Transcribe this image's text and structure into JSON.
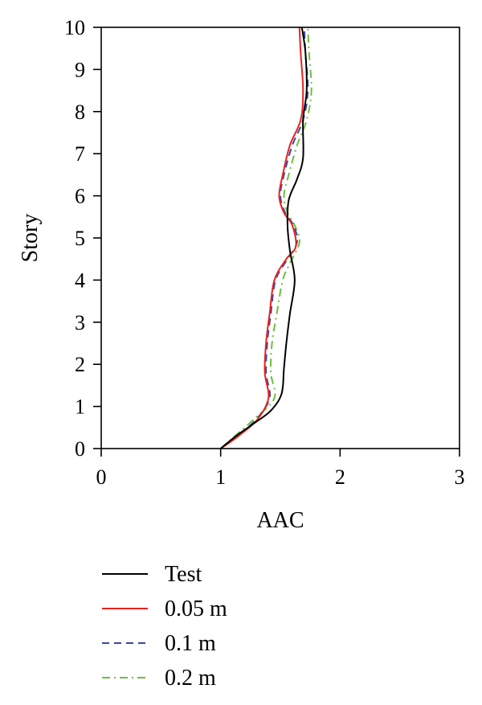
{
  "chart_data": {
    "type": "line",
    "title": "",
    "xlabel": "AAC",
    "ylabel": "Story",
    "xlim": [
      0,
      3
    ],
    "ylim": [
      0,
      10
    ],
    "x_ticks": [
      "0",
      "1",
      "2",
      "3"
    ],
    "y_ticks": [
      "0",
      "1",
      "2",
      "3",
      "4",
      "5",
      "6",
      "7",
      "8",
      "9",
      "10"
    ],
    "grid": false,
    "legend_position": "bottom",
    "series": [
      {
        "name": "Test",
        "color": "#000000",
        "dash": "solid",
        "points": [
          [
            1.0,
            0
          ],
          [
            1.13,
            0.3
          ],
          [
            1.28,
            0.6
          ],
          [
            1.42,
            0.9
          ],
          [
            1.51,
            1.3
          ],
          [
            1.53,
            1.9
          ],
          [
            1.55,
            2.5
          ],
          [
            1.58,
            3.2
          ],
          [
            1.62,
            4.0
          ],
          [
            1.58,
            4.7
          ],
          [
            1.56,
            5.3
          ],
          [
            1.57,
            5.9
          ],
          [
            1.64,
            6.4
          ],
          [
            1.69,
            6.9
          ],
          [
            1.69,
            7.8
          ],
          [
            1.72,
            8.5
          ],
          [
            1.71,
            9.4
          ],
          [
            1.68,
            10.0
          ]
        ]
      },
      {
        "name": "0.05 m",
        "color": "#e8231d",
        "dash": "solid",
        "points": [
          [
            1.0,
            0
          ],
          [
            1.15,
            0.3
          ],
          [
            1.31,
            0.7
          ],
          [
            1.4,
            1.2
          ],
          [
            1.37,
            1.8
          ],
          [
            1.38,
            2.5
          ],
          [
            1.41,
            3.2
          ],
          [
            1.45,
            4.0
          ],
          [
            1.55,
            4.5
          ],
          [
            1.63,
            4.8
          ],
          [
            1.6,
            5.3
          ],
          [
            1.53,
            5.6
          ],
          [
            1.49,
            6.0
          ],
          [
            1.52,
            6.5
          ],
          [
            1.58,
            7.2
          ],
          [
            1.67,
            7.8
          ],
          [
            1.69,
            8.5
          ],
          [
            1.67,
            9.4
          ],
          [
            1.66,
            10.0
          ]
        ]
      },
      {
        "name": "0.1 m",
        "color": "#3a46a8",
        "dash": "dashed",
        "points": [
          [
            1.0,
            0
          ],
          [
            1.14,
            0.3
          ],
          [
            1.3,
            0.7
          ],
          [
            1.41,
            1.2
          ],
          [
            1.38,
            1.8
          ],
          [
            1.39,
            2.5
          ],
          [
            1.42,
            3.2
          ],
          [
            1.46,
            4.0
          ],
          [
            1.56,
            4.5
          ],
          [
            1.64,
            4.9
          ],
          [
            1.61,
            5.3
          ],
          [
            1.54,
            5.6
          ],
          [
            1.5,
            6.0
          ],
          [
            1.53,
            6.5
          ],
          [
            1.6,
            7.2
          ],
          [
            1.69,
            7.8
          ],
          [
            1.73,
            8.5
          ],
          [
            1.71,
            9.4
          ],
          [
            1.7,
            10.0
          ]
        ]
      },
      {
        "name": "0.2 m",
        "color": "#6dbf3e",
        "dash": "dashdot",
        "points": [
          [
            1.0,
            0
          ],
          [
            1.12,
            0.3
          ],
          [
            1.28,
            0.7
          ],
          [
            1.45,
            1.2
          ],
          [
            1.42,
            1.8
          ],
          [
            1.43,
            2.5
          ],
          [
            1.47,
            3.2
          ],
          [
            1.52,
            4.0
          ],
          [
            1.58,
            4.4
          ],
          [
            1.66,
            4.9
          ],
          [
            1.62,
            5.3
          ],
          [
            1.56,
            5.6
          ],
          [
            1.53,
            6.0
          ],
          [
            1.57,
            6.5
          ],
          [
            1.64,
            7.2
          ],
          [
            1.72,
            7.8
          ],
          [
            1.76,
            8.5
          ],
          [
            1.74,
            9.4
          ],
          [
            1.73,
            10.0
          ]
        ]
      }
    ]
  }
}
